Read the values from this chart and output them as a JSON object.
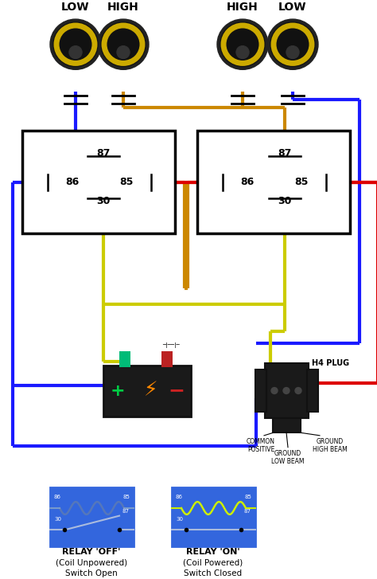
{
  "bg_color": "#ffffff",
  "wire_blue": "#1a1aff",
  "wire_orange": "#cc8800",
  "wire_yellow": "#cccc00",
  "wire_red": "#dd0000",
  "lw": 3,
  "bottom_text1": "RELAY 'OFF'",
  "bottom_text2": "(Coil Unpowered)",
  "bottom_text3": "Switch Open",
  "bottom_text4": "RELAY 'ON'",
  "bottom_text5": "(Coil Powered)",
  "bottom_text6": "Switch Closed",
  "h4_label": "H4 PLUG",
  "label_LOW_left": "LOW",
  "label_HIGH_left": "HIGH",
  "label_HIGH_right": "HIGH",
  "label_LOW_right": "LOW"
}
